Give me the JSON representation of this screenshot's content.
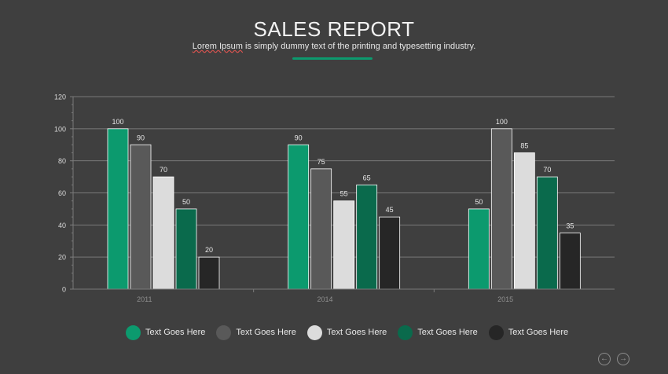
{
  "header": {
    "title": "SALES REPORT",
    "subtitle_lead": "Lorem Ipsum",
    "subtitle_rest": " is simply dummy text of the printing and typesetting industry."
  },
  "colors": {
    "background": "#3f3f3f",
    "accent": "#0c9a6e",
    "grid": "#7a7a7a"
  },
  "chart_data": {
    "type": "bar",
    "categories": [
      "2011",
      "2014",
      "2015"
    ],
    "ylim": [
      0,
      120
    ],
    "yticks": [
      0,
      20,
      40,
      60,
      80,
      100,
      120
    ],
    "grid": true,
    "legend_position": "bottom",
    "series": [
      {
        "name": "Text Goes Here",
        "color": "#0c9a6e",
        "values": [
          100,
          90,
          50
        ]
      },
      {
        "name": "Text Goes Here",
        "color": "#595959",
        "values": [
          90,
          75,
          100
        ]
      },
      {
        "name": "Text Goes Here",
        "color": "#dcdcdc",
        "values": [
          70,
          55,
          85
        ]
      },
      {
        "name": "Text Goes Here",
        "color": "#0a6a4c",
        "values": [
          50,
          65,
          70
        ]
      },
      {
        "name": "Text Goes Here",
        "color": "#262626",
        "values": [
          20,
          45,
          35
        ]
      }
    ]
  },
  "navigation": {
    "prev_icon": "←",
    "next_icon": "→"
  }
}
